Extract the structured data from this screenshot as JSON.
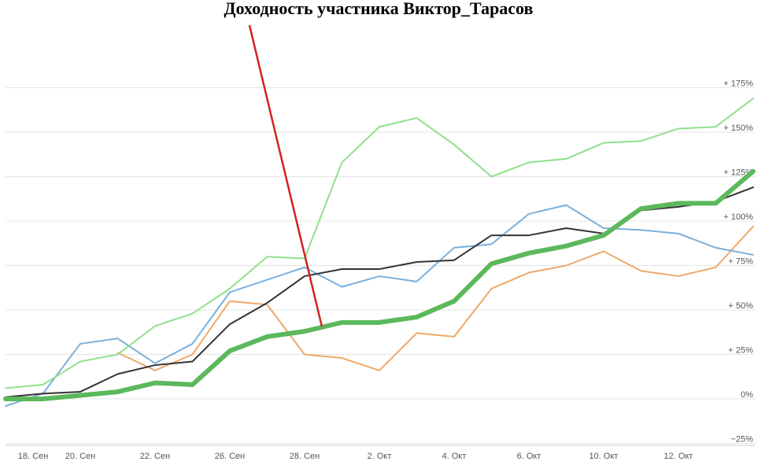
{
  "chart_data": {
    "type": "line",
    "title": "Доходность участника Виктор_Тарасов",
    "categories": [
      "18. Сен",
      null,
      "20. Сен",
      null,
      "22. Сен",
      null,
      "26. Сен",
      null,
      "28. Сен",
      null,
      "2. Окт",
      null,
      "4. Окт",
      null,
      "6. Окт",
      null,
      "10. Окт",
      null,
      "12. Окт",
      null,
      null
    ],
    "ylim": [
      -30,
      210
    ],
    "yticks": [
      {
        "value": -25,
        "label": "−25%"
      },
      {
        "value": 0,
        "label": "0%"
      },
      {
        "value": 25,
        "label": "+ 25%"
      },
      {
        "value": 50,
        "label": "+ 50%"
      },
      {
        "value": 75,
        "label": "+ 75%"
      },
      {
        "value": 100,
        "label": "+ 100%"
      },
      {
        "value": 125,
        "label": "+ 125%"
      },
      {
        "value": 150,
        "label": "+ 150%"
      },
      {
        "value": 175,
        "label": "+ 175%"
      }
    ],
    "grid": true,
    "series": [
      {
        "color": "#f0a868",
        "width": 2,
        "values": [
          null,
          null,
          null,
          26,
          16,
          25,
          55,
          53,
          25,
          23,
          16,
          37,
          35,
          62,
          71,
          75,
          83,
          72,
          69,
          74,
          97
        ]
      },
      {
        "color": "#7ab0dc",
        "width": 2,
        "values": [
          -4,
          3,
          31,
          34,
          20,
          31,
          60,
          67,
          74,
          63,
          69,
          66,
          85,
          87,
          104,
          109,
          96,
          95,
          93,
          85,
          81
        ]
      },
      {
        "color": "#90e08a",
        "width": 2,
        "values": [
          6,
          8,
          21,
          25,
          41,
          48,
          62,
          80,
          79,
          133,
          153,
          158,
          143,
          125,
          133,
          135,
          144,
          145,
          152,
          153,
          169
        ]
      },
      {
        "color": "#333333",
        "width": 2,
        "values": [
          1,
          3,
          4,
          14,
          19,
          21,
          42,
          54,
          69,
          73,
          73,
          77,
          78,
          92,
          92,
          96,
          93,
          106,
          108,
          111,
          119
        ]
      },
      {
        "color": "#5cb85c",
        "width": 6,
        "values": [
          0,
          0,
          2,
          4,
          9,
          8,
          27,
          35,
          38,
          43,
          43,
          46,
          55,
          76,
          82,
          86,
          92,
          107,
          110,
          110,
          128
        ]
      }
    ]
  }
}
